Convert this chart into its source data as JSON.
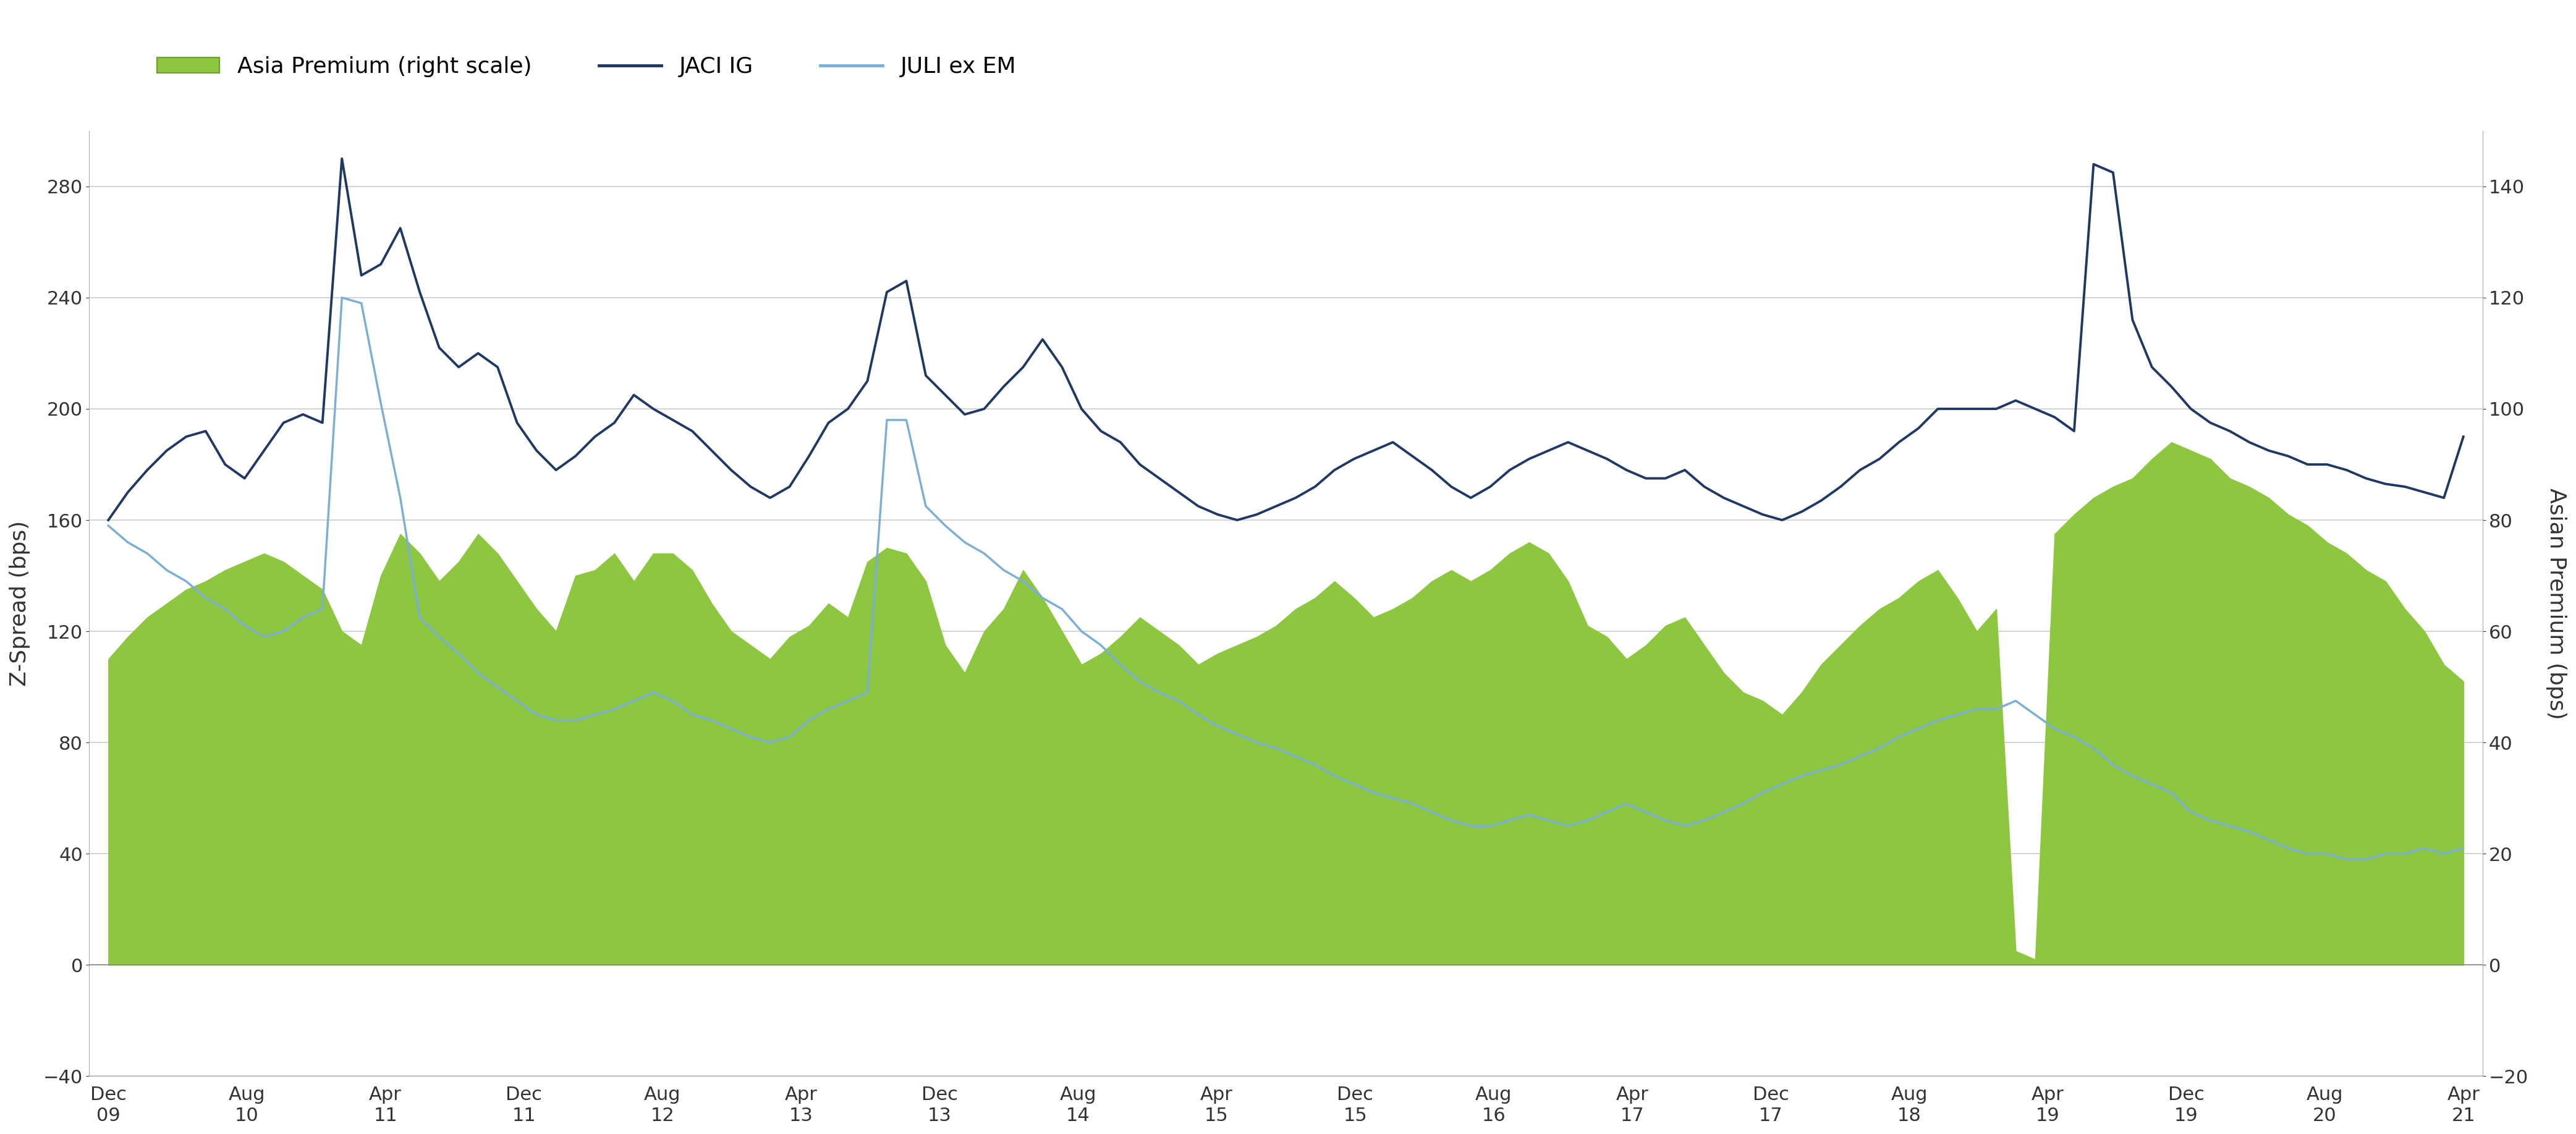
{
  "ylabel_left": "Z-Spread (bps)",
  "ylabel_right": "Asian Premium (bps)",
  "left_ylim": [
    -40,
    300
  ],
  "right_ylim": [
    -20,
    150
  ],
  "left_yticks": [
    -40,
    0,
    40,
    80,
    120,
    160,
    200,
    240,
    280
  ],
  "right_yticks": [
    -20,
    0,
    20,
    40,
    60,
    80,
    100,
    120,
    140
  ],
  "background_color": "#ffffff",
  "grid_color": "#cccccc",
  "fill_color": "#8dc63f",
  "fill_alpha": 1.0,
  "jaci_color": "#1f3864",
  "juli_color": "#7bafd4",
  "legend_items": [
    "Asia Premium (right scale)",
    "JACI IG",
    "JULI ex EM"
  ],
  "xtick_months": [
    "Dec",
    "Aug",
    "Apr",
    "Dec",
    "Aug",
    "Apr",
    "Dec",
    "Aug",
    "Apr",
    "Dec",
    "Aug",
    "Apr",
    "Dec",
    "Aug",
    "Apr",
    "Dec",
    "Aug",
    "Apr"
  ],
  "xtick_years": [
    "09",
    "10",
    "11",
    "11",
    "12",
    "13",
    "13",
    "14",
    "15",
    "15",
    "16",
    "17",
    "17",
    "18",
    "19",
    "19",
    "20",
    "21"
  ],
  "jaci_data": [
    160,
    170,
    178,
    185,
    190,
    192,
    180,
    175,
    185,
    195,
    198,
    195,
    290,
    248,
    252,
    265,
    242,
    222,
    215,
    220,
    215,
    195,
    185,
    178,
    183,
    190,
    195,
    205,
    200,
    196,
    192,
    185,
    178,
    172,
    168,
    172,
    183,
    195,
    200,
    210,
    242,
    246,
    212,
    205,
    198,
    200,
    208,
    215,
    225,
    215,
    200,
    192,
    188,
    180,
    175,
    170,
    165,
    162,
    160,
    162,
    165,
    168,
    172,
    178,
    182,
    185,
    188,
    183,
    178,
    172,
    168,
    172,
    178,
    182,
    185,
    188,
    185,
    182,
    178,
    175,
    175,
    178,
    172,
    168,
    165,
    162,
    160,
    163,
    167,
    172,
    178,
    182,
    188,
    193,
    200,
    200,
    200,
    200,
    203,
    200,
    197,
    192,
    288,
    285,
    232,
    215,
    208,
    200,
    195,
    192,
    188,
    185,
    183,
    180,
    180,
    178,
    175,
    173,
    172,
    170,
    168,
    190
  ],
  "juli_data": [
    158,
    152,
    148,
    142,
    138,
    132,
    128,
    122,
    118,
    120,
    125,
    128,
    240,
    238,
    202,
    168,
    125,
    118,
    112,
    105,
    100,
    95,
    90,
    88,
    88,
    90,
    92,
    95,
    98,
    95,
    90,
    88,
    85,
    82,
    80,
    82,
    88,
    92,
    95,
    98,
    196,
    196,
    165,
    158,
    152,
    148,
    142,
    138,
    132,
    128,
    120,
    115,
    108,
    102,
    98,
    95,
    90,
    86,
    83,
    80,
    78,
    75,
    72,
    68,
    65,
    62,
    60,
    58,
    55,
    52,
    50,
    50,
    52,
    54,
    52,
    50,
    52,
    55,
    58,
    55,
    52,
    50,
    52,
    55,
    58,
    62,
    65,
    68,
    70,
    72,
    75,
    78,
    82,
    85,
    88,
    90,
    92,
    92,
    95,
    90,
    85,
    82,
    78,
    72,
    68,
    65,
    62,
    55,
    52,
    50,
    48,
    45,
    42,
    40,
    40,
    38,
    38,
    40,
    40,
    42,
    40,
    42
  ],
  "premium_data": [
    110,
    118,
    125,
    130,
    135,
    138,
    142,
    145,
    148,
    145,
    140,
    135,
    120,
    115,
    140,
    155,
    148,
    138,
    145,
    155,
    148,
    138,
    128,
    120,
    140,
    142,
    148,
    138,
    148,
    148,
    142,
    130,
    120,
    115,
    110,
    118,
    122,
    130,
    125,
    145,
    150,
    148,
    138,
    115,
    105,
    120,
    128,
    142,
    132,
    120,
    108,
    112,
    118,
    125,
    120,
    115,
    108,
    112,
    115,
    118,
    122,
    128,
    132,
    138,
    132,
    125,
    128,
    132,
    138,
    142,
    138,
    142,
    148,
    152,
    148,
    138,
    122,
    118,
    110,
    115,
    122,
    125,
    115,
    105,
    98,
    95,
    90,
    98,
    108,
    115,
    122,
    128,
    132,
    138,
    142,
    132,
    120,
    128,
    5,
    2,
    155,
    162,
    168,
    172,
    175,
    182,
    188,
    185,
    182,
    175,
    172,
    168,
    162,
    158,
    152,
    148,
    142,
    138,
    128,
    120,
    108,
    102
  ],
  "n_points": 122
}
